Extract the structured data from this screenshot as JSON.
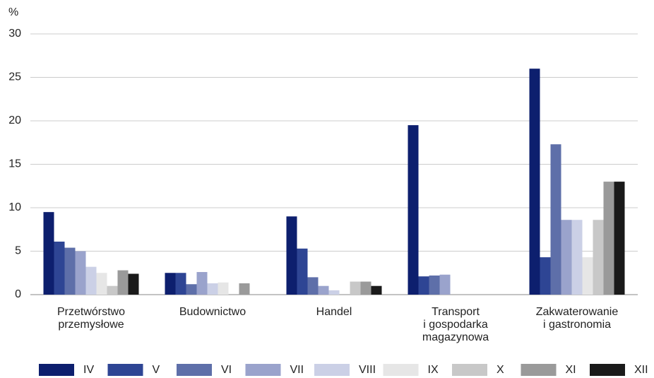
{
  "chart_data": {
    "type": "bar",
    "y_unit_label": "%",
    "categories": [
      [
        "Przetwórstwo",
        "przemysłowe"
      ],
      [
        "Budownictwo"
      ],
      [
        "Handel"
      ],
      [
        "Transport",
        "i gospodarka",
        "magazynowa"
      ],
      [
        "Zakwaterowanie",
        "i gastronomia"
      ]
    ],
    "series": [
      {
        "name": "IV",
        "color": "#0d1f6e",
        "values": [
          9.5,
          2.5,
          9.0,
          19.5,
          26.0
        ]
      },
      {
        "name": "V",
        "color": "#2e4594",
        "values": [
          6.1,
          2.5,
          5.3,
          2.1,
          4.3
        ]
      },
      {
        "name": "VI",
        "color": "#5e6fa9",
        "values": [
          5.4,
          1.2,
          2.0,
          2.2,
          17.3
        ]
      },
      {
        "name": "VII",
        "color": "#9aa3cc",
        "values": [
          5.0,
          2.6,
          1.0,
          2.3,
          8.6
        ]
      },
      {
        "name": "VIII",
        "color": "#cbd0e6",
        "values": [
          3.2,
          1.3,
          0.5,
          0,
          8.6
        ]
      },
      {
        "name": "IX",
        "color": "#e6e6e6",
        "values": [
          2.5,
          1.4,
          0,
          0,
          4.3
        ]
      },
      {
        "name": "X",
        "color": "#c8c8c8",
        "values": [
          1.0,
          0,
          1.5,
          0,
          8.6
        ]
      },
      {
        "name": "XI",
        "color": "#9a9a9a",
        "values": [
          2.8,
          1.3,
          1.5,
          0,
          13.0
        ]
      },
      {
        "name": "XII",
        "color": "#1a1a1a",
        "values": [
          2.4,
          0,
          1.0,
          0,
          13.0
        ]
      }
    ],
    "ylim": [
      0,
      30
    ],
    "yticks": [
      0,
      5,
      10,
      15,
      20,
      25,
      30
    ],
    "grid": true
  }
}
